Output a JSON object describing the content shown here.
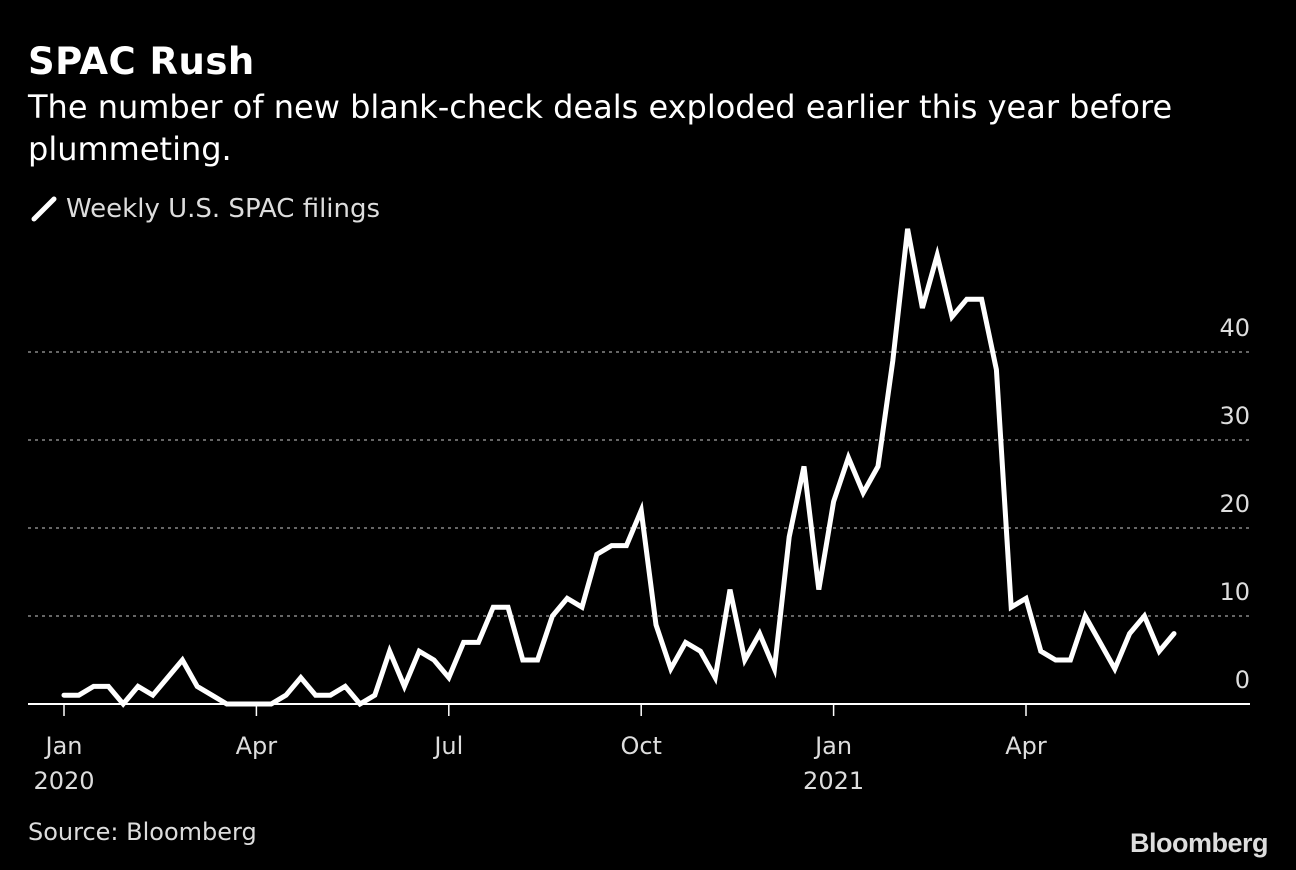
{
  "title": "SPAC Rush",
  "subtitle": "The number of new blank-check deals exploded earlier this year before plummeting.",
  "legend_label": "Weekly U.S. SPAC filings",
  "source": "Source: Bloomberg",
  "logo": "Bloomberg",
  "colors": {
    "background": "#000000",
    "line": "#ffffff",
    "grid": "#888888",
    "text": "#dddddd"
  },
  "chart_data": {
    "type": "line",
    "title": "SPAC Rush",
    "subtitle": "The number of new blank-check deals exploded earlier this year before plummeting.",
    "x_unit": "week",
    "x_ticks": [
      {
        "label": "Jan",
        "sublabel": "2020",
        "week": 0
      },
      {
        "label": "Apr",
        "sublabel": "",
        "week": 13
      },
      {
        "label": "Jul",
        "sublabel": "",
        "week": 26
      },
      {
        "label": "Oct",
        "sublabel": "",
        "week": 39
      },
      {
        "label": "Jan",
        "sublabel": "2021",
        "week": 52
      },
      {
        "label": "Apr",
        "sublabel": "",
        "week": 65
      }
    ],
    "y_ticks": [
      0,
      10,
      20,
      30,
      40
    ],
    "ylim": [
      0,
      54
    ],
    "grid": true,
    "series": [
      {
        "name": "Weekly U.S. SPAC filings",
        "values": [
          1,
          1,
          2,
          2,
          0,
          2,
          1,
          3,
          5,
          2,
          1,
          0,
          0,
          0,
          0,
          1,
          3,
          1,
          1,
          2,
          0,
          1,
          6,
          2,
          6,
          5,
          3,
          7,
          7,
          11,
          11,
          5,
          5,
          10,
          12,
          11,
          17,
          18,
          18,
          22,
          9,
          4,
          7,
          6,
          3,
          13,
          5,
          8,
          4,
          19,
          27,
          13,
          23,
          28,
          24,
          27,
          39,
          54,
          45,
          51,
          44,
          46,
          46,
          38,
          11,
          12,
          6,
          5,
          5,
          10,
          7,
          4,
          8,
          10,
          6,
          8
        ]
      }
    ]
  }
}
